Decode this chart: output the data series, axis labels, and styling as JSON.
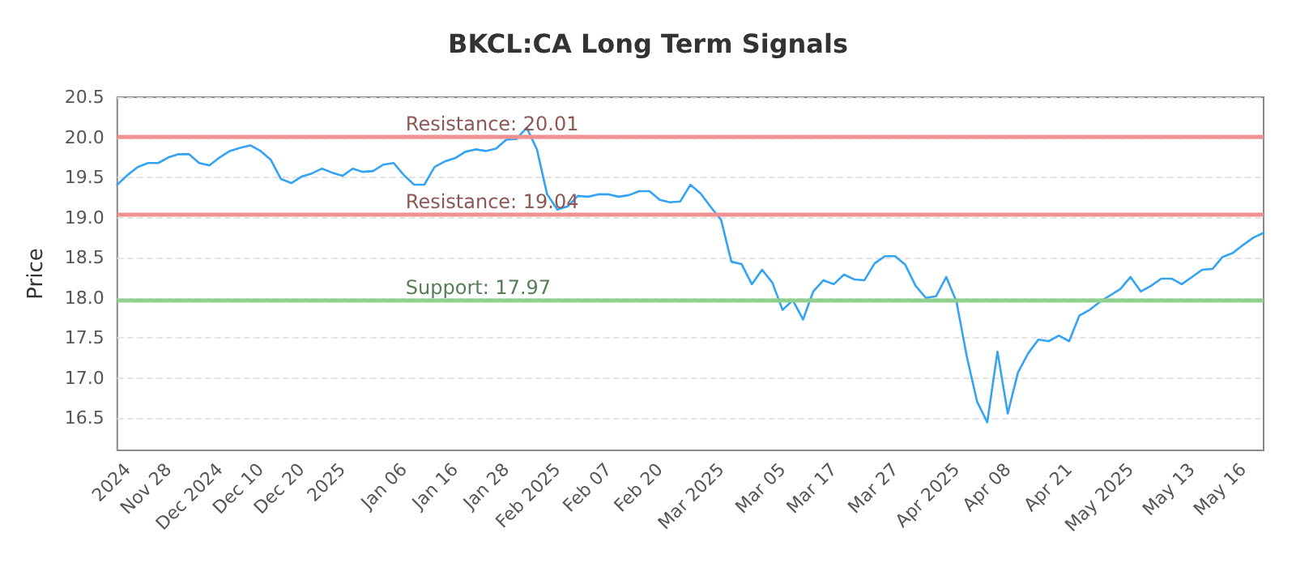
{
  "chart_data": {
    "type": "line",
    "title": "BKCL:CA Long Term Signals",
    "ylabel": "Price",
    "categories": [
      null,
      "2024",
      null,
      null,
      null,
      "Nov 28",
      null,
      null,
      null,
      null,
      "Dec 2024",
      null,
      null,
      null,
      "Dec 10",
      null,
      null,
      null,
      "Dec 20",
      null,
      null,
      null,
      "2025",
      null,
      null,
      null,
      null,
      null,
      "Jan 06",
      null,
      null,
      null,
      null,
      "Jan 16",
      null,
      null,
      null,
      null,
      "Jan 28",
      null,
      null,
      null,
      null,
      "Feb 2025",
      null,
      null,
      null,
      null,
      "Feb 07",
      null,
      null,
      null,
      null,
      "Feb 20",
      null,
      null,
      null,
      null,
      null,
      "Mar 2025",
      null,
      null,
      null,
      null,
      null,
      "Mar 05",
      null,
      null,
      null,
      null,
      "Mar 17",
      null,
      null,
      null,
      null,
      null,
      "Mar 27",
      null,
      null,
      null,
      null,
      null,
      "Apr 2025",
      null,
      null,
      null,
      null,
      "Apr 08",
      null,
      null,
      null,
      null,
      null,
      "Apr 21",
      null,
      null,
      null,
      null,
      null,
      "May 2025",
      null,
      null,
      null,
      null,
      null,
      "May 13",
      null,
      null,
      null,
      null,
      "May 16",
      null,
      null
    ],
    "series": [
      {
        "color": "#33a3f4",
        "values": [
          19.41,
          19.53,
          19.63,
          19.68,
          19.68,
          19.75,
          19.79,
          19.79,
          19.68,
          19.65,
          19.75,
          19.83,
          19.87,
          19.9,
          19.83,
          19.72,
          19.48,
          19.43,
          19.51,
          19.55,
          19.61,
          19.56,
          19.52,
          19.61,
          19.57,
          19.58,
          19.66,
          19.68,
          19.53,
          19.41,
          19.41,
          19.63,
          19.7,
          19.74,
          19.82,
          19.85,
          19.83,
          19.86,
          19.97,
          19.98,
          20.12,
          19.85,
          19.29,
          19.1,
          19.14,
          19.27,
          19.26,
          19.29,
          19.29,
          19.26,
          19.28,
          19.33,
          19.33,
          19.22,
          19.19,
          19.2,
          19.41,
          19.3,
          19.13,
          18.97,
          18.45,
          18.42,
          18.17,
          18.35,
          18.19,
          17.85,
          17.97,
          17.73,
          18.08,
          18.22,
          18.17,
          18.29,
          18.23,
          18.22,
          18.43,
          18.52,
          18.52,
          18.41,
          18.15,
          18.0,
          18.02,
          18.26,
          17.95,
          17.27,
          16.71,
          16.45,
          17.33,
          16.56,
          17.07,
          17.31,
          17.48,
          17.46,
          17.53,
          17.46,
          17.78,
          17.85,
          17.95,
          18.03,
          18.11,
          18.26,
          18.08,
          18.15,
          18.24,
          18.24,
          18.17,
          18.26,
          18.35,
          18.36,
          18.51,
          18.56,
          18.66,
          18.75,
          18.81
        ]
      }
    ],
    "ylim": [
      16.1,
      20.5
    ],
    "yticks": [
      16.5,
      {
        "value": 17,
        "label": "17.0"
      },
      17.5,
      {
        "value": 18,
        "label": "18.0"
      },
      18.5,
      {
        "value": 19,
        "label": "19.0"
      },
      19.5,
      {
        "value": 20,
        "label": "20.0"
      },
      20.5
    ],
    "grid": "y",
    "marker": "none",
    "line_style": "solid",
    "ref_lines": [
      {
        "axis": "y",
        "value": 20.01,
        "label": "Resistance: 20.01",
        "color": "#f09090"
      },
      {
        "axis": "y",
        "value": 19.04,
        "label": "Resistance: 19.04",
        "color": "#f09090"
      },
      {
        "axis": "y",
        "value": 17.97,
        "label": "Support: 17.97",
        "color": "#8fd08f"
      }
    ]
  }
}
